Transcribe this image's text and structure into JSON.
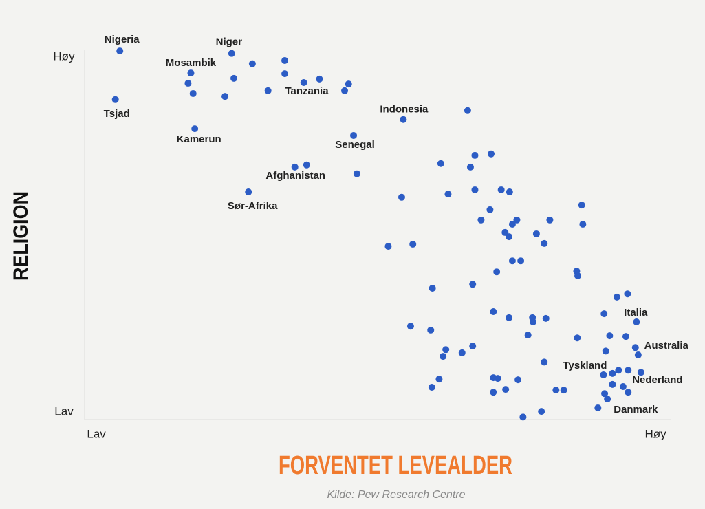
{
  "chart_data": {
    "type": "scatter",
    "xlabel": "FORVENTET LEVEALDER",
    "ylabel": "RELIGION",
    "source": "Kilde: Pew Research Centre",
    "xlim": [
      -2.1,
      102.7
    ],
    "ylim": [
      -2.1,
      102.1
    ],
    "xticks": [
      {
        "value": 0,
        "label": "Lav"
      },
      {
        "value": 100,
        "label": "Høy"
      }
    ],
    "yticks": [
      {
        "value": 0,
        "label": "Lav"
      },
      {
        "value": 100,
        "label": "Høy"
      }
    ],
    "color": "#2c5cc5",
    "x": [
      4.2,
      3.4,
      24.2,
      27.9,
      33.7,
      33.7,
      16.9,
      16.4,
      17.3,
      23.0,
      24.6,
      30.7,
      37.1,
      39.9,
      45.1,
      44.4,
      17.6,
      54.9,
      66.4,
      46.0,
      35.5,
      37.6,
      46.6,
      27.2,
      61.6,
      67.7,
      70.6,
      66.9,
      54.6,
      62.9,
      67.7,
      72.4,
      73.9,
      70.4,
      68.8,
      75.2,
      74.4,
      81.1,
      86.8,
      87.0,
      73.1,
      73.8,
      78.7,
      80.1,
      52.2,
      56.6,
      74.4,
      75.9,
      71.6,
      85.9,
      86.1,
      60.1,
      67.3,
      95.0,
      93.1,
      90.8,
      96.6,
      71.0,
      73.8,
      78.0,
      80.4,
      78.1,
      56.2,
      59.8,
      77.2,
      86.0,
      91.8,
      94.7,
      96.4,
      96.9,
      91.1,
      62.5,
      62.0,
      65.4,
      67.3,
      80.1,
      90.7,
      92.3,
      93.4,
      95.1,
      97.4,
      61.3,
      60.0,
      71.0,
      71.8,
      75.4,
      94.2,
      92.3,
      90.9,
      95.1,
      91.4,
      71.0,
      73.2,
      82.2,
      83.6,
      89.7,
      79.6,
      76.3
    ],
    "y": [
      101.7,
      88.0,
      101.0,
      98.1,
      99.0,
      95.3,
      95.5,
      92.6,
      89.7,
      88.9,
      94.0,
      90.5,
      92.8,
      93.8,
      92.4,
      90.5,
      79.8,
      82.4,
      84.9,
      77.9,
      69.0,
      69.6,
      67.1,
      62.0,
      70.0,
      72.3,
      72.7,
      69.0,
      60.5,
      61.4,
      62.6,
      62.6,
      62.0,
      57.0,
      54.1,
      54.1,
      52.9,
      54.1,
      58.3,
      52.9,
      50.6,
      49.4,
      50.2,
      47.5,
      46.7,
      47.3,
      42.6,
      42.6,
      39.5,
      39.7,
      38.4,
      34.9,
      36.0,
      33.3,
      32.4,
      27.7,
      25.4,
      28.3,
      26.6,
      26.6,
      26.4,
      25.4,
      24.2,
      23.1,
      21.7,
      20.9,
      21.5,
      21.3,
      18.2,
      16.1,
      17.2,
      17.6,
      15.7,
      16.7,
      18.6,
      14.1,
      10.5,
      10.9,
      11.8,
      11.8,
      11.2,
      9.3,
      7.0,
      9.7,
      9.5,
      9.1,
      7.2,
      7.8,
      5.2,
      5.6,
      3.7,
      5.6,
      6.4,
      6.2,
      6.2,
      1.2,
      0.2,
      -1.4
    ],
    "point_labels": [
      "Nigeria",
      "Tsjad",
      "Niger",
      null,
      null,
      null,
      "Mosambik",
      null,
      null,
      null,
      null,
      null,
      null,
      null,
      null,
      "Tanzania",
      "Kamerun",
      "Indonesia",
      null,
      "Senegal",
      null,
      "Afghanistan",
      null,
      "Sør-Afrika",
      null,
      null,
      null,
      null,
      null,
      null,
      null,
      null,
      null,
      null,
      null,
      null,
      null,
      null,
      null,
      null,
      null,
      null,
      null,
      null,
      null,
      null,
      null,
      null,
      null,
      null,
      null,
      null,
      null,
      null,
      null,
      "Italia",
      null,
      null,
      null,
      null,
      null,
      null,
      null,
      null,
      null,
      null,
      null,
      null,
      "Australia",
      null,
      null,
      null,
      null,
      null,
      null,
      null,
      "Tyskland",
      null,
      null,
      null,
      null,
      null,
      null,
      null,
      null,
      null,
      "Nederland",
      null,
      null,
      null,
      null,
      null,
      null,
      null,
      null,
      "Danmark",
      null,
      null
    ]
  }
}
